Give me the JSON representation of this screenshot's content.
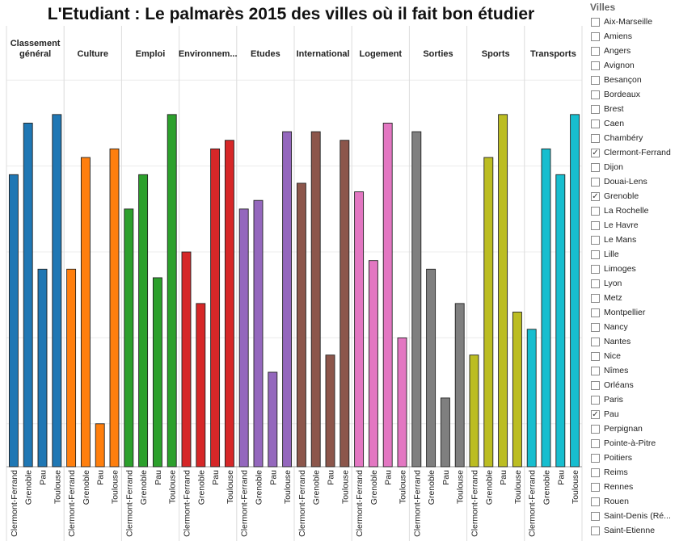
{
  "chart_data": {
    "type": "bar",
    "title": "L'Etudiant : Le palmarès 2015 des villes où il fait bon étudier",
    "xlabel": "",
    "ylabel": "",
    "ylim": [
      0,
      4.7
    ],
    "grid": true,
    "legend": "right",
    "categories": [
      "Clermont-Ferrand",
      "Grenoble",
      "Pau",
      "Toulouse"
    ],
    "groups": [
      {
        "name": "Classement général",
        "color": "#1f77b4",
        "values": [
          3.4,
          4.0,
          2.3,
          4.1
        ]
      },
      {
        "name": "Culture",
        "color": "#ff7f0e",
        "values": [
          2.3,
          3.6,
          0.5,
          3.7
        ]
      },
      {
        "name": "Emploi",
        "color": "#2ca02c",
        "values": [
          3.0,
          3.4,
          2.2,
          4.1
        ]
      },
      {
        "name": "Environnem...",
        "color": "#d62728",
        "values": [
          2.5,
          1.9,
          3.7,
          3.8
        ]
      },
      {
        "name": "Etudes",
        "color": "#9467bd",
        "values": [
          3.0,
          3.1,
          1.1,
          3.9
        ]
      },
      {
        "name": "International",
        "color": "#8c564b",
        "values": [
          3.3,
          3.9,
          1.3,
          3.8
        ]
      },
      {
        "name": "Logement",
        "color": "#e377c2",
        "values": [
          3.2,
          2.4,
          4.0,
          1.5
        ]
      },
      {
        "name": "Sorties",
        "color": "#7f7f7f",
        "values": [
          3.9,
          2.3,
          0.8,
          1.9
        ]
      },
      {
        "name": "Sports",
        "color": "#bcbd22",
        "values": [
          1.3,
          3.6,
          4.1,
          1.8
        ]
      },
      {
        "name": "Transports",
        "color": "#17becf",
        "values": [
          1.6,
          3.7,
          3.4,
          4.1
        ]
      }
    ]
  },
  "legend": {
    "title": "Villes",
    "items": [
      {
        "label": "Aix-Marseille",
        "checked": false
      },
      {
        "label": "Amiens",
        "checked": false
      },
      {
        "label": "Angers",
        "checked": false
      },
      {
        "label": "Avignon",
        "checked": false
      },
      {
        "label": "Besançon",
        "checked": false
      },
      {
        "label": "Bordeaux",
        "checked": false
      },
      {
        "label": "Brest",
        "checked": false
      },
      {
        "label": "Caen",
        "checked": false
      },
      {
        "label": "Chambéry",
        "checked": false
      },
      {
        "label": "Clermont-Ferrand",
        "checked": true
      },
      {
        "label": "Dijon",
        "checked": false
      },
      {
        "label": "Douai-Lens",
        "checked": false
      },
      {
        "label": "Grenoble",
        "checked": true
      },
      {
        "label": "La Rochelle",
        "checked": false
      },
      {
        "label": "Le Havre",
        "checked": false
      },
      {
        "label": "Le Mans",
        "checked": false
      },
      {
        "label": "Lille",
        "checked": false
      },
      {
        "label": "Limoges",
        "checked": false
      },
      {
        "label": "Lyon",
        "checked": false
      },
      {
        "label": "Metz",
        "checked": false
      },
      {
        "label": "Montpellier",
        "checked": false
      },
      {
        "label": "Nancy",
        "checked": false
      },
      {
        "label": "Nantes",
        "checked": false
      },
      {
        "label": "Nice",
        "checked": false
      },
      {
        "label": "Nîmes",
        "checked": false
      },
      {
        "label": "Orléans",
        "checked": false
      },
      {
        "label": "Paris",
        "checked": false
      },
      {
        "label": "Pau",
        "checked": true
      },
      {
        "label": "Perpignan",
        "checked": false
      },
      {
        "label": "Pointe-à-Pitre",
        "checked": false
      },
      {
        "label": "Poitiers",
        "checked": false
      },
      {
        "label": "Reims",
        "checked": false
      },
      {
        "label": "Rennes",
        "checked": false
      },
      {
        "label": "Rouen",
        "checked": false
      },
      {
        "label": "Saint-Denis (Ré...",
        "checked": false
      },
      {
        "label": "Saint-Etienne",
        "checked": false
      }
    ]
  }
}
